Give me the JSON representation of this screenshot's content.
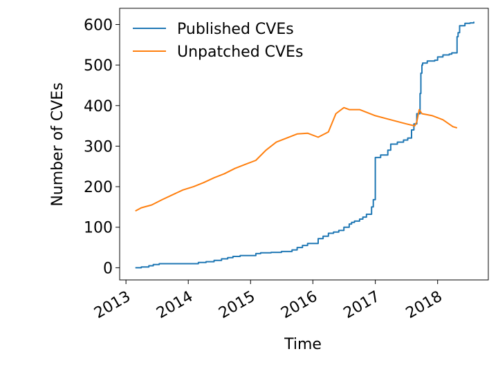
{
  "chart_data": {
    "type": "line",
    "title": "",
    "xlabel": "Time",
    "ylabel": "Number of CVEs",
    "x_ticks": [
      "2013",
      "2014",
      "2015",
      "2016",
      "2017",
      "2018"
    ],
    "y_ticks": [
      "0",
      "100",
      "200",
      "300",
      "400",
      "500",
      "600"
    ],
    "xlim": [
      "2012-11-25",
      "2018-10-25"
    ],
    "ylim": [
      -30,
      640
    ],
    "grid": false,
    "legend": "top-left",
    "series": [
      {
        "name": "Published CVEs",
        "color": "#1f77b4",
        "step": true,
        "x": [
          "2013-02-25",
          "2013-04-01",
          "2013-05-15",
          "2013-06-10",
          "2013-07-15",
          "2014-02-01",
          "2014-03-01",
          "2014-04-15",
          "2014-06-01",
          "2014-07-15",
          "2014-08-20",
          "2014-09-20",
          "2014-11-01",
          "2015-02-01",
          "2015-03-01",
          "2015-05-01",
          "2015-07-01",
          "2015-09-01",
          "2015-10-01",
          "2015-11-01",
          "2015-12-01",
          "2016-02-01",
          "2016-03-01",
          "2016-04-01",
          "2016-05-01",
          "2016-06-01",
          "2016-07-01",
          "2016-08-01",
          "2016-08-15",
          "2016-09-01",
          "2016-10-01",
          "2016-10-20",
          "2016-11-10",
          "2016-12-10",
          "2016-12-20",
          "2017-01-01",
          "2017-02-01",
          "2017-03-15",
          "2017-04-01",
          "2017-05-10",
          "2017-06-15",
          "2017-07-10",
          "2017-08-01",
          "2017-08-15",
          "2017-09-01",
          "2017-09-20",
          "2017-09-25",
          "2017-10-01",
          "2017-10-05",
          "2017-11-01",
          "2017-12-15",
          "2018-01-01",
          "2018-02-01",
          "2018-03-10",
          "2018-03-25",
          "2018-04-25",
          "2018-05-01",
          "2018-05-10",
          "2018-06-10",
          "2018-07-10",
          "2018-08-01"
        ],
        "y": [
          0,
          2,
          5,
          8,
          10,
          10,
          13,
          15,
          18,
          22,
          25,
          28,
          30,
          35,
          37,
          38,
          40,
          44,
          50,
          55,
          60,
          72,
          78,
          85,
          88,
          92,
          100,
          108,
          112,
          115,
          120,
          125,
          132,
          150,
          168,
          272,
          278,
          290,
          305,
          310,
          315,
          320,
          340,
          355,
          380,
          430,
          480,
          500,
          505,
          510,
          512,
          520,
          525,
          527,
          530,
          570,
          580,
          597,
          603,
          604,
          607
        ]
      },
      {
        "name": "Unpatched CVEs",
        "color": "#ff7f0e",
        "step": false,
        "x": [
          "2013-02-25",
          "2013-04-01",
          "2013-06-01",
          "2013-08-01",
          "2013-10-01",
          "2013-12-01",
          "2014-02-01",
          "2014-04-01",
          "2014-06-01",
          "2014-08-01",
          "2014-10-01",
          "2014-12-01",
          "2015-02-01",
          "2015-04-01",
          "2015-06-01",
          "2015-08-01",
          "2015-10-01",
          "2015-12-01",
          "2016-02-01",
          "2016-04-01",
          "2016-05-15",
          "2016-07-01",
          "2016-08-01",
          "2016-10-01",
          "2017-01-01",
          "2017-04-01",
          "2017-07-01",
          "2017-08-20",
          "2017-09-01",
          "2017-09-15",
          "2017-10-01",
          "2017-12-01",
          "2018-02-01",
          "2018-04-01",
          "2018-04-25"
        ],
        "y": [
          140,
          148,
          155,
          168,
          180,
          192,
          200,
          210,
          222,
          232,
          245,
          255,
          265,
          290,
          310,
          320,
          330,
          332,
          322,
          335,
          380,
          395,
          390,
          390,
          375,
          365,
          355,
          350,
          360,
          390,
          380,
          375,
          365,
          348,
          345
        ]
      }
    ]
  }
}
